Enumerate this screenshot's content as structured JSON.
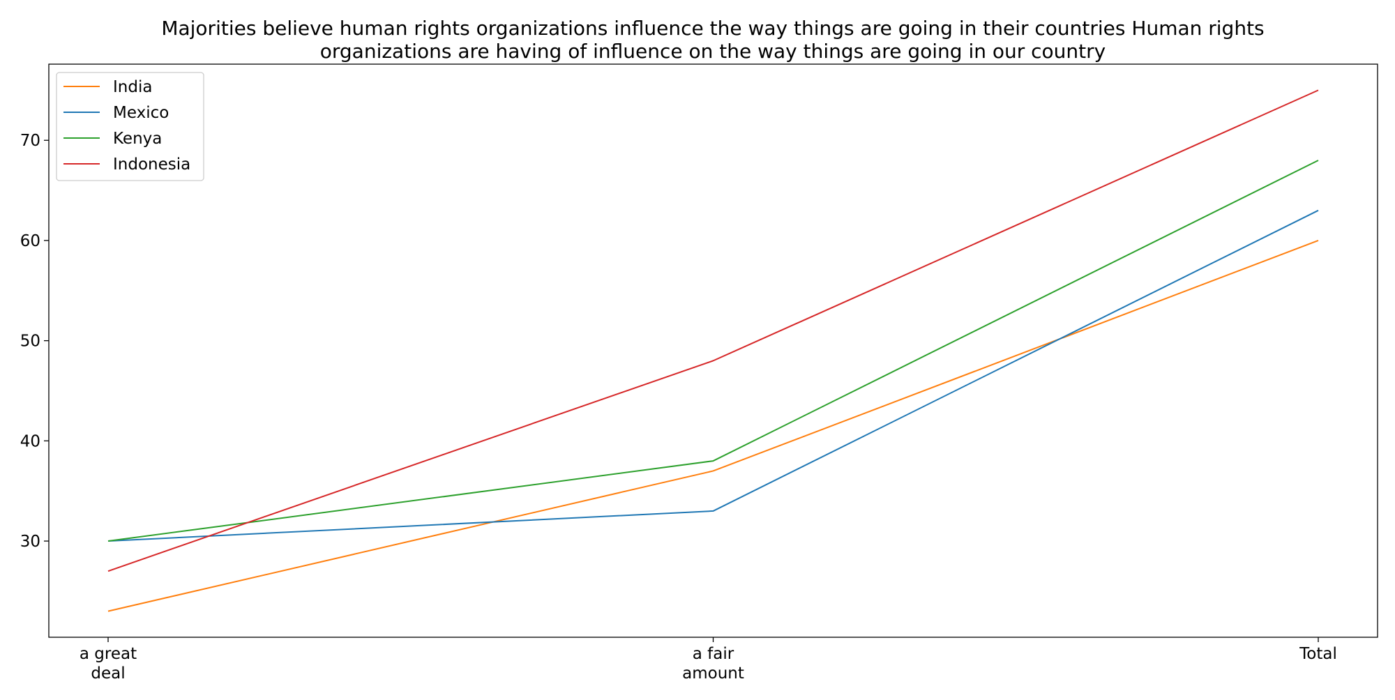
{
  "chart_data": {
    "type": "line",
    "title_lines": [
      "Majorities believe human rights organizations influence the way things are going in their countries Human rights",
      "organizations are having of influence on the way things are going in our country"
    ],
    "xlabel": "",
    "ylabel": "",
    "categories": [
      [
        "a great",
        "deal"
      ],
      [
        "a fair",
        "amount"
      ],
      [
        "Total"
      ]
    ],
    "yticks": [
      30,
      40,
      50,
      60,
      70
    ],
    "ylim": [
      20.4,
      77.6
    ],
    "grid": false,
    "legend_position": "top-left",
    "series": [
      {
        "name": "India",
        "color": "#ff7f0e",
        "values": [
          23,
          37,
          60
        ]
      },
      {
        "name": "Mexico",
        "color": "#1f77b4",
        "values": [
          30,
          33,
          63
        ]
      },
      {
        "name": "Kenya",
        "color": "#2ca02c",
        "values": [
          30,
          38,
          68
        ]
      },
      {
        "name": "Indonesia",
        "color": "#d62728",
        "values": [
          27,
          48,
          75
        ]
      }
    ]
  }
}
